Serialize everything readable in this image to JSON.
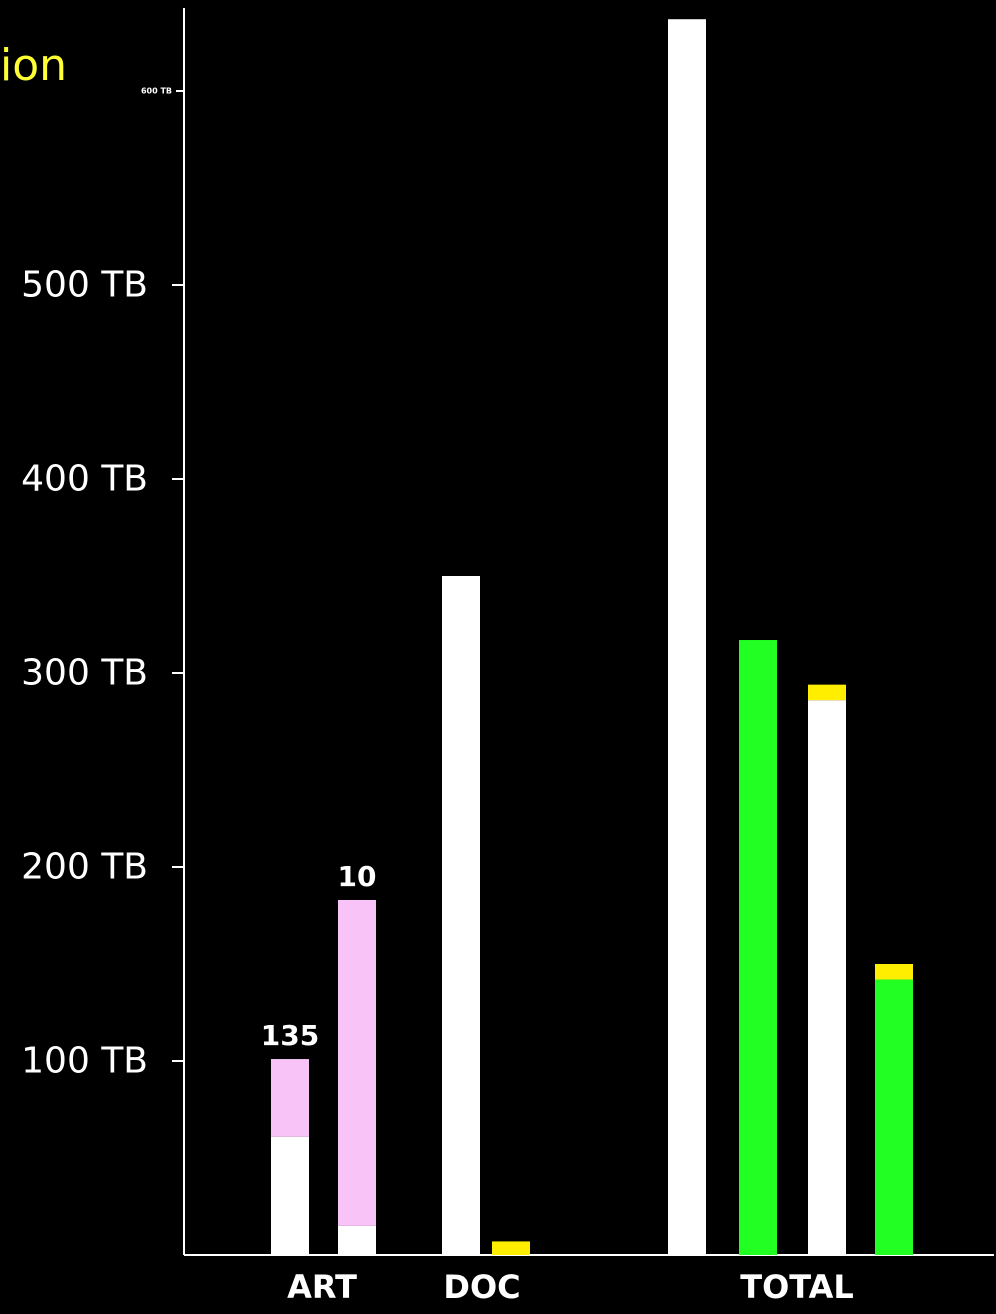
{
  "title_fragment": "ion",
  "colors": {
    "background": "#000000",
    "axis": "#ffffff",
    "title": "#ffff33",
    "white": "#ffffff",
    "pink": "#f8c4f8",
    "green": "#22ff22",
    "yellow": "#ffee00"
  },
  "chart_data": {
    "type": "bar",
    "stacked": true,
    "y_unit": "TB",
    "ylim": [
      0,
      640
    ],
    "y_ticks": [
      {
        "value": 100,
        "label": "100 TB"
      },
      {
        "value": 200,
        "label": "200 TB"
      },
      {
        "value": 300,
        "label": "300 TB"
      },
      {
        "value": 400,
        "label": "400 TB"
      },
      {
        "value": 500,
        "label": "500 TB"
      },
      {
        "value": 600,
        "label": "600 TB"
      }
    ],
    "categories": [
      "ART",
      "DOC",
      "TOTAL"
    ],
    "bars": [
      {
        "group": "ART",
        "segments": [
          {
            "color": "white",
            "value": 61
          },
          {
            "color": "pink",
            "value": 40
          }
        ],
        "label": "135"
      },
      {
        "group": "ART",
        "segments": [
          {
            "color": "white",
            "value": 15
          },
          {
            "color": "pink",
            "value": 168
          }
        ],
        "label": "10"
      },
      {
        "group": "DOC",
        "segments": [
          {
            "color": "white",
            "value": 350
          }
        ],
        "label": ""
      },
      {
        "group": "DOC",
        "segments": [
          {
            "color": "yellow",
            "value": 7
          }
        ],
        "label": ""
      },
      {
        "group": "TOTAL",
        "segments": [
          {
            "color": "white",
            "value": 637
          }
        ],
        "label": ""
      },
      {
        "group": "TOTAL",
        "segments": [
          {
            "color": "green",
            "value": 317
          }
        ],
        "label": ""
      },
      {
        "group": "TOTAL",
        "segments": [
          {
            "color": "white",
            "value": 286
          },
          {
            "color": "yellow",
            "value": 8
          }
        ],
        "label": ""
      },
      {
        "group": "TOTAL",
        "segments": [
          {
            "color": "green",
            "value": 142
          },
          {
            "color": "yellow",
            "value": 8
          }
        ],
        "label": ""
      }
    ]
  }
}
